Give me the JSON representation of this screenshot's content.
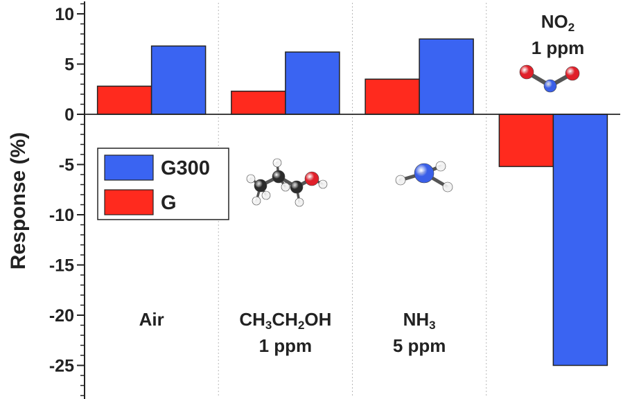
{
  "chart_data": {
    "type": "bar",
    "ylabel": "Response (%)",
    "ylim": [
      -26,
      10.5
    ],
    "yticks": [
      "10",
      "5",
      "0",
      "-5",
      "-10",
      "-15",
      "-20",
      "-25"
    ],
    "grid": "vertical dotted separators between categories",
    "legend_position": "left, inside plot",
    "categories": [
      {
        "lines": [
          {
            "parts": [
              {
                "t": "Air"
              }
            ]
          }
        ]
      },
      {
        "lines": [
          {
            "parts": [
              {
                "t": "CH"
              },
              {
                "t": "3",
                "sub": true
              },
              {
                "t": "CH"
              },
              {
                "t": "2",
                "sub": true
              },
              {
                "t": "OH"
              }
            ]
          },
          {
            "parts": [
              {
                "t": "1 ppm"
              }
            ]
          }
        ]
      },
      {
        "lines": [
          {
            "parts": [
              {
                "t": "NH"
              },
              {
                "t": "3",
                "sub": true
              }
            ]
          },
          {
            "parts": [
              {
                "t": "5 ppm"
              }
            ]
          }
        ]
      },
      {
        "lines": [
          {
            "parts": [
              {
                "t": "NO"
              },
              {
                "t": "2",
                "sub": true
              }
            ]
          },
          {
            "parts": [
              {
                "t": "1 ppm"
              }
            ]
          }
        ]
      }
    ],
    "series": [
      {
        "name": "G",
        "color": "#ff2a1e",
        "values": [
          2.8,
          2.3,
          3.5,
          -5.2
        ]
      },
      {
        "name": "G300",
        "color": "#3a64f2",
        "values": [
          6.8,
          6.2,
          7.5,
          -25.0
        ]
      }
    ],
    "molecule_icons": [
      "ethanol-molecule-icon",
      "ammonia-molecule-icon",
      "nitrogen-dioxide-molecule-icon"
    ],
    "atom_colors": {
      "carbon": "#2b2b2b",
      "hydrogen": "#f2f2f2",
      "oxygen": "#e0202a",
      "nitrogen": "#3a5fe8"
    }
  }
}
